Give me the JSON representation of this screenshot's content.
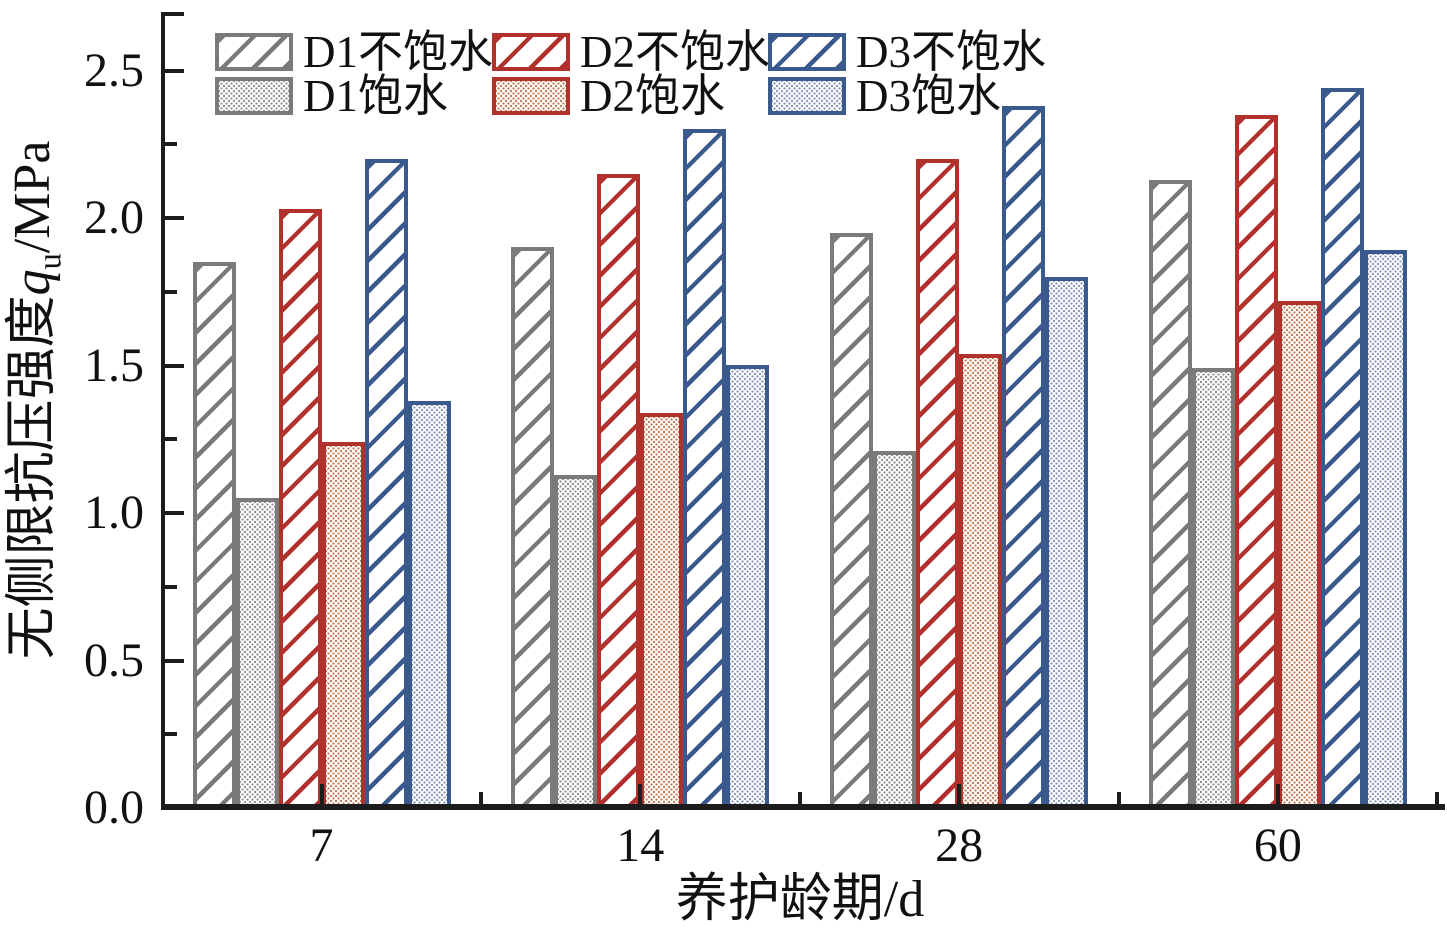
{
  "figure": {
    "background": "#ffffff",
    "axis_color": "#1c1c1c",
    "text_color": "#111111"
  },
  "chart_data": {
    "type": "bar",
    "title": "",
    "xlabel": "养护龄期/d",
    "ylabel": "无侧限抗压强度qu/MPa",
    "ylabel_parts": {
      "prefix": "无侧限抗压强度",
      "variable": "q",
      "subscript": "u",
      "suffix": "/MPa"
    },
    "categories": [
      "7",
      "14",
      "28",
      "60"
    ],
    "series": [
      {
        "name": "D1不饱水",
        "pattern": "hatch",
        "color": "#7a7a7a",
        "pattern_color": "#7a7a7a",
        "values": [
          1.85,
          1.9,
          1.95,
          2.13
        ]
      },
      {
        "name": "D1饱水",
        "pattern": "dots",
        "color": "#7a7a7a",
        "pattern_color": "#949494",
        "values": [
          1.05,
          1.13,
          1.21,
          1.49
        ]
      },
      {
        "name": "D2不饱水",
        "pattern": "hatch",
        "color": "#b1322c",
        "pattern_color": "#b1322c",
        "values": [
          2.03,
          2.15,
          2.2,
          2.35
        ]
      },
      {
        "name": "D2饱水",
        "pattern": "dots",
        "color": "#b1322c",
        "pattern_color": "#c47e58",
        "values": [
          1.24,
          1.34,
          1.54,
          1.72
        ]
      },
      {
        "name": "D3不饱水",
        "pattern": "hatch",
        "color": "#3a5a8e",
        "pattern_color": "#3a5a8e",
        "values": [
          2.2,
          2.3,
          2.38,
          2.44
        ]
      },
      {
        "name": "D3饱水",
        "pattern": "dots",
        "color": "#3a5a8e",
        "pattern_color": "#8b97bd",
        "values": [
          1.38,
          1.5,
          1.8,
          1.89
        ]
      }
    ],
    "ylim": [
      0,
      2.5
    ],
    "y_major_step": 0.5,
    "y_minor_step": 0.25,
    "y_tick_labels": [
      "0.0",
      "0.5",
      "1.0",
      "1.5",
      "2.0",
      "2.5"
    ],
    "grid": false,
    "legend_position": "top-left",
    "legend_columns": [
      {
        "top": "D1不饱水",
        "bottom": "D1饱水"
      },
      {
        "top": "D2不饱水",
        "bottom": "D2饱水"
      },
      {
        "top": "D3不饱水",
        "bottom": "D3饱水"
      }
    ]
  }
}
